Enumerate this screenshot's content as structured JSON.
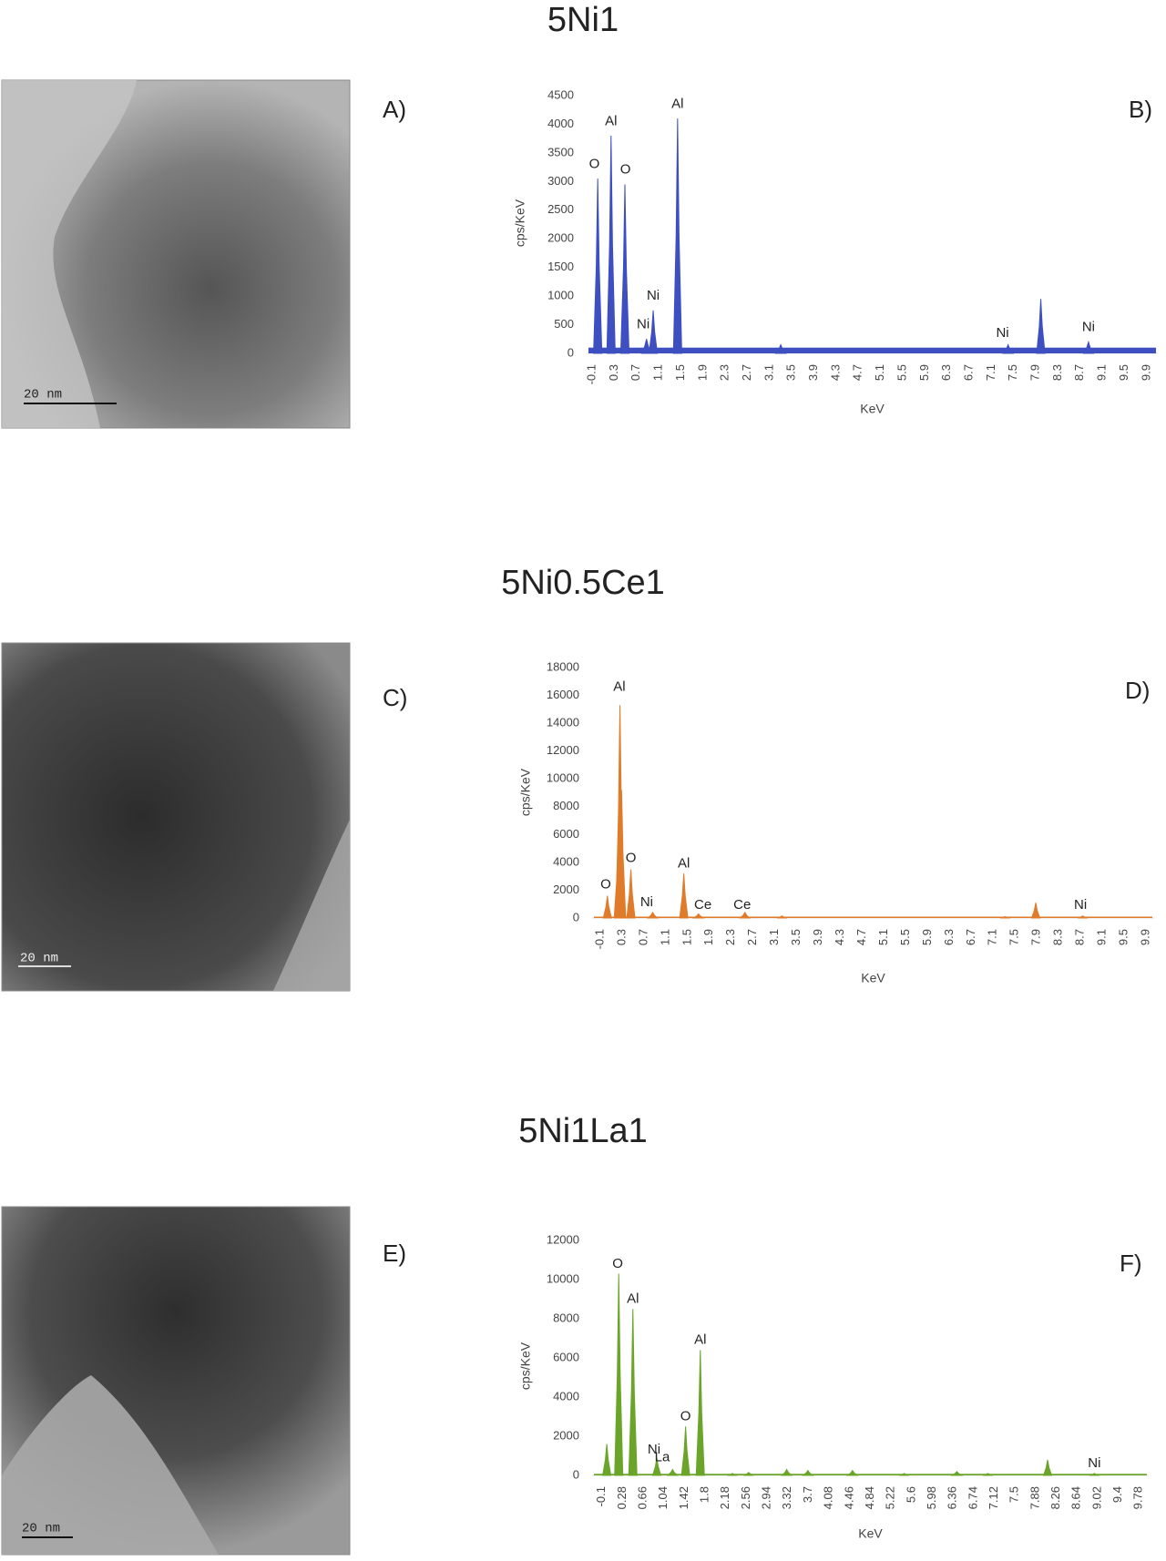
{
  "panels": [
    {
      "title": "5Ni1",
      "image_label": "A)",
      "scale_bar": "20 nm"
    },
    {
      "title": "5Ni0.5Ce1",
      "image_label": "C)",
      "scale_bar": "20 nm"
    },
    {
      "title": "5Ni1La1",
      "image_label": "E)",
      "scale_bar": "20 nm"
    }
  ],
  "chart_data": [
    {
      "type": "area",
      "panel_label": "B)",
      "x_label": "KeV",
      "y_label": "cps/KeV",
      "color": "#3d4fc1",
      "xlim": [
        -0.2,
        10.1
      ],
      "xticks": [
        -0.1,
        0.3,
        0.7,
        1.1,
        1.5,
        1.9,
        2.3,
        2.7,
        3.1,
        3.5,
        3.9,
        4.3,
        4.7,
        5.1,
        5.5,
        5.9,
        6.3,
        6.7,
        7.1,
        7.5,
        7.9,
        8.3,
        8.7,
        9.1,
        9.5,
        9.9
      ],
      "ylim": [
        0,
        4500
      ],
      "yticks": [
        0,
        500,
        1000,
        1500,
        2000,
        2500,
        3000,
        3500,
        4000,
        4500
      ],
      "baseline": 100,
      "peaks": [
        {
          "x": 0.0,
          "height": 3050
        },
        {
          "x": 0.24,
          "height": 3800
        },
        {
          "x": 0.49,
          "height": 2950
        },
        {
          "x": 0.88,
          "height": 250
        },
        {
          "x": 1.0,
          "height": 750
        },
        {
          "x": 1.44,
          "height": 4100
        },
        {
          "x": 3.3,
          "height": 150
        },
        {
          "x": 7.4,
          "height": 150
        },
        {
          "x": 7.99,
          "height": 950
        },
        {
          "x": 8.85,
          "height": 200
        }
      ],
      "annotations": [
        {
          "text": "O",
          "x": -0.06,
          "y": 3300
        },
        {
          "text": "Al",
          "x": 0.24,
          "y": 4050
        },
        {
          "text": "O",
          "x": 0.5,
          "y": 3200
        },
        {
          "text": "Ni",
          "x": 0.82,
          "y": 500
        },
        {
          "text": "Ni",
          "x": 1.0,
          "y": 1000
        },
        {
          "text": "Al",
          "x": 1.44,
          "y": 4350
        },
        {
          "text": "Ni",
          "x": 7.3,
          "y": 350
        },
        {
          "text": "Ni",
          "x": 8.85,
          "y": 450
        }
      ]
    },
    {
      "type": "area",
      "panel_label": "D)",
      "x_label": "KeV",
      "y_label": "cps/KeV",
      "color": "#e07b2a",
      "xlim": [
        -0.25,
        10.05
      ],
      "xticks": [
        -0.1,
        0.3,
        0.7,
        1.1,
        1.5,
        1.9,
        2.3,
        2.7,
        3.1,
        3.5,
        3.9,
        4.3,
        4.7,
        5.1,
        5.5,
        5.9,
        6.3,
        6.7,
        7.1,
        7.5,
        7.9,
        8.3,
        8.7,
        9.1,
        9.5,
        9.9
      ],
      "ylim": [
        0,
        18000
      ],
      "yticks": [
        0,
        2000,
        4000,
        6000,
        8000,
        10000,
        12000,
        14000,
        16000,
        18000
      ],
      "baseline": 100,
      "peaks": [
        {
          "x": 0.03,
          "height": 1600
        },
        {
          "x": 0.23,
          "height": 5800
        },
        {
          "x": 0.26,
          "height": 15300
        },
        {
          "x": 0.29,
          "height": 9200
        },
        {
          "x": 0.46,
          "height": 3500
        },
        {
          "x": 0.86,
          "height": 400
        },
        {
          "x": 1.43,
          "height": 3200
        },
        {
          "x": 1.7,
          "height": 300
        },
        {
          "x": 2.55,
          "height": 400
        },
        {
          "x": 3.23,
          "height": 150
        },
        {
          "x": 7.32,
          "height": 100
        },
        {
          "x": 7.88,
          "height": 1100
        },
        {
          "x": 8.74,
          "height": 150
        }
      ],
      "annotations": [
        {
          "text": "O",
          "x": 0.0,
          "y": 2400
        },
        {
          "text": "Al",
          "x": 0.25,
          "y": 16600
        },
        {
          "text": "O",
          "x": 0.46,
          "y": 4300
        },
        {
          "text": "Ni",
          "x": 0.75,
          "y": 1100
        },
        {
          "text": "Al",
          "x": 1.43,
          "y": 3900
        },
        {
          "text": "Ce",
          "x": 1.78,
          "y": 900
        },
        {
          "text": "Ce",
          "x": 2.5,
          "y": 900
        },
        {
          "text": "Ni",
          "x": 8.7,
          "y": 900
        }
      ]
    },
    {
      "type": "area",
      "panel_label": "F)",
      "x_label": "KeV",
      "y_label": "cps/KeV",
      "color": "#6aa52a",
      "xlim": [
        -0.28,
        9.96
      ],
      "xticks": [
        -0.1,
        0.28,
        0.66,
        1.04,
        1.42,
        1.8,
        2.18,
        2.56,
        2.94,
        3.32,
        3.7,
        4.08,
        4.46,
        4.84,
        5.22,
        5.6,
        5.98,
        6.36,
        6.74,
        7.12,
        7.5,
        7.88,
        8.26,
        8.64,
        9.02,
        9.4,
        9.78
      ],
      "ylim": [
        0,
        12000
      ],
      "yticks": [
        0,
        2000,
        4000,
        6000,
        8000,
        10000,
        12000
      ],
      "baseline": 80,
      "peaks": [
        {
          "x": -0.01,
          "height": 1600
        },
        {
          "x": 0.21,
          "height": 10300
        },
        {
          "x": 0.47,
          "height": 8500
        },
        {
          "x": 0.91,
          "height": 900
        },
        {
          "x": 1.2,
          "height": 300
        },
        {
          "x": 1.44,
          "height": 2500
        },
        {
          "x": 1.71,
          "height": 6400
        },
        {
          "x": 2.3,
          "height": 100
        },
        {
          "x": 2.6,
          "height": 150
        },
        {
          "x": 3.3,
          "height": 300
        },
        {
          "x": 3.69,
          "height": 250
        },
        {
          "x": 4.51,
          "height": 250
        },
        {
          "x": 5.46,
          "height": 100
        },
        {
          "x": 6.43,
          "height": 200
        },
        {
          "x": 7.0,
          "height": 100
        },
        {
          "x": 8.1,
          "height": 800
        },
        {
          "x": 8.96,
          "height": 100
        }
      ],
      "annotations": [
        {
          "text": "O",
          "x": 0.19,
          "y": 10800
        },
        {
          "text": "Al",
          "x": 0.47,
          "y": 9000
        },
        {
          "text": "Ni",
          "x": 0.86,
          "y": 1300
        },
        {
          "text": "La",
          "x": 1.01,
          "y": 900
        },
        {
          "text": "O",
          "x": 1.44,
          "y": 3000
        },
        {
          "text": "Al",
          "x": 1.71,
          "y": 6900
        },
        {
          "text": "Ni",
          "x": 8.96,
          "y": 600
        }
      ]
    }
  ]
}
